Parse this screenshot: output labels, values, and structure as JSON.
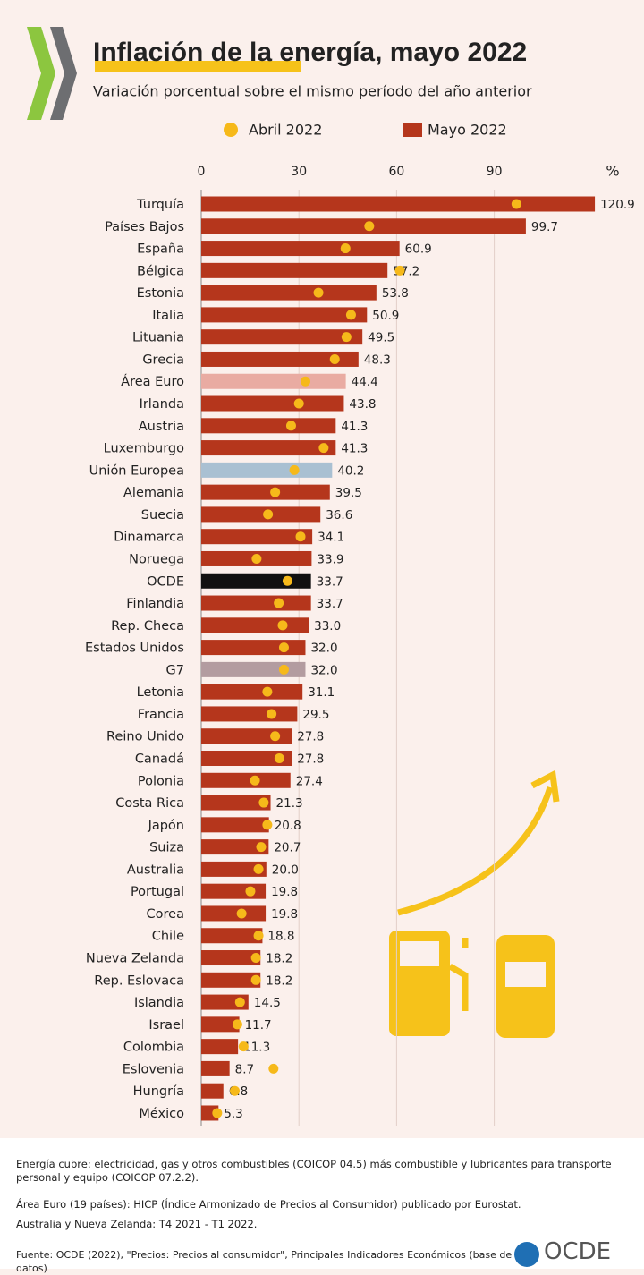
{
  "chart_data": {
    "type": "bar",
    "orientation": "horizontal",
    "title": "Inflación de la energía, mayo 2022",
    "subtitle": "Variación porcentual sobre el mismo período del año anterior",
    "xlabel": "%",
    "xlim": [
      0,
      125
    ],
    "xticks": [
      0,
      30,
      60,
      90
    ],
    "grid": true,
    "categories": [
      "Turquía",
      "Países Bajos",
      "España",
      "Bélgica",
      "Estonia",
      "Italia",
      "Lituania",
      "Grecia",
      "Área Euro",
      "Irlanda",
      "Austria",
      "Luxemburgo",
      "Unión Europea",
      "Alemania",
      "Suecia",
      "Dinamarca",
      "Noruega",
      "OCDE",
      "Finlandia",
      "Rep. Checa",
      "Estados Unidos",
      "G7",
      "Letonia",
      "Francia",
      "Reino Unido",
      "Canadá",
      "Polonia",
      "Costa Rica",
      "Japón",
      "Suiza",
      "Australia",
      "Portugal",
      "Corea",
      "Chile",
      "Nueva Zelanda",
      "Rep. Eslovaca",
      "Islandia",
      "Israel",
      "Colombia",
      "Eslovenia",
      "Hungría",
      "México"
    ],
    "series": [
      {
        "name": "Abril 2022",
        "marker": "dot",
        "color": "#f6b91a",
        "values": [
          96.8,
          51.6,
          44.3,
          61,
          36,
          46,
          44.6,
          41,
          32,
          30,
          27.6,
          37.6,
          28.6,
          22.7,
          20.5,
          30.5,
          17,
          26.5,
          23.8,
          25,
          25.4,
          25.4,
          20.3,
          21.6,
          22.7,
          24,
          16.5,
          19.2,
          20.3,
          18.4,
          17.6,
          15.1,
          12.4,
          17.6,
          16.8,
          16.8,
          11.9,
          11.1,
          13,
          22.2,
          10.3,
          4.9
        ]
      },
      {
        "name": "Mayo 2022",
        "marker": "bar",
        "color": "#b5361c",
        "colors": [
          "#b5361c",
          "#b5361c",
          "#b5361c",
          "#b5361c",
          "#b5361c",
          "#b5361c",
          "#b5361c",
          "#b5361c",
          "#e9aba2",
          "#b5361c",
          "#b5361c",
          "#b5361c",
          "#a9c0d2",
          "#b5361c",
          "#b5361c",
          "#b5361c",
          "#b5361c",
          "#111111",
          "#b5361c",
          "#b5361c",
          "#b5361c",
          "#b39ca0",
          "#b5361c",
          "#b5361c",
          "#b5361c",
          "#b5361c",
          "#b5361c",
          "#b5361c",
          "#b5361c",
          "#b5361c",
          "#b5361c",
          "#b5361c",
          "#b5361c",
          "#b5361c",
          "#b5361c",
          "#b5361c",
          "#b5361c",
          "#b5361c",
          "#b5361c",
          "#b5361c",
          "#b5361c",
          "#b5361c"
        ],
        "values": [
          120.9,
          99.7,
          60.9,
          57.2,
          53.8,
          50.9,
          49.5,
          48.3,
          44.4,
          43.8,
          41.3,
          41.3,
          40.2,
          39.5,
          36.6,
          34.1,
          33.9,
          33.7,
          33.7,
          33,
          32,
          32,
          31.1,
          29.5,
          27.8,
          27.8,
          27.4,
          21.3,
          20.8,
          20.7,
          20,
          19.8,
          19.8,
          18.8,
          18.2,
          18.2,
          14.5,
          11.7,
          11.3,
          8.7,
          6.8,
          5.3
        ],
        "value_labels": [
          "120.9",
          "99.7",
          "60.9",
          "57.2",
          "53.8",
          "50.9",
          "49.5",
          "48.3",
          "44.4",
          "43.8",
          "41.3",
          "41.3",
          "40.2",
          "39.5",
          "36.6",
          "34.1",
          "33.9",
          "33.7",
          "33.7",
          "33.0",
          "32.0",
          "32.0",
          "31.1",
          "29.5",
          "27.8",
          "27.8",
          "27.4",
          "21.3",
          "20.8",
          "20.7",
          "20.0",
          "19.8",
          "19.8",
          "18.8",
          "18.2",
          "18.2",
          "14.5",
          "11.7",
          "11.3",
          "8.7",
          "6.8",
          "5.3"
        ]
      }
    ]
  },
  "footer": {
    "notes": [
      "Energía cubre: electricidad, gas y otros combustibles (COICOP 04.5) más combustible y lubricantes para transporte personal y equipo (COICOP 07.2.2).",
      "Área Euro (19 países): HICP (Índice Armonizado de Precios al Consumidor) publicado por Eurostat.",
      "Australia y Nueva Zelanda: T4 2021 - T1 2022."
    ],
    "source": "Fuente: OCDE (2022), \"Precios: Precios al consumidor\", Principales Indicadores Económicos (base de datos)",
    "logo_text": "OCDE"
  }
}
